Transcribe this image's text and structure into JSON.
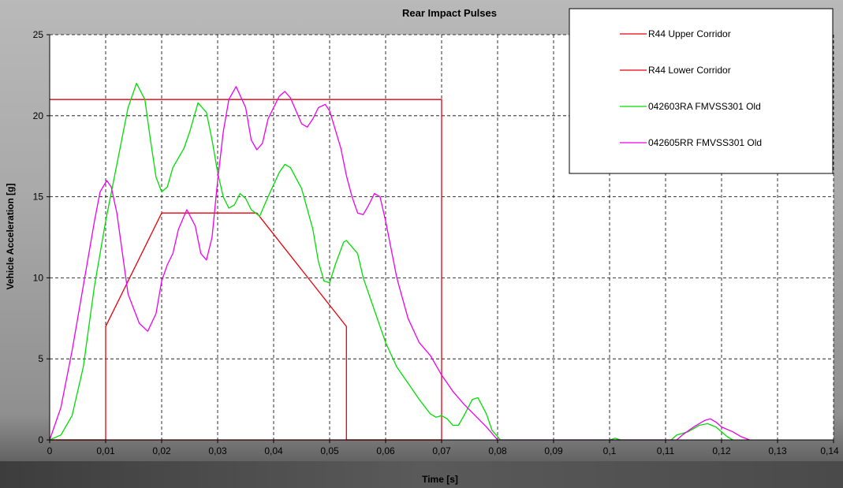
{
  "chart_data": {
    "type": "line",
    "title": "Rear Impact Pulses",
    "xlabel": "Time [s]",
    "ylabel": "Vehicle Acceleration [g]",
    "xlim": [
      0,
      0.14
    ],
    "ylim": [
      0,
      25
    ],
    "x_ticks": [
      0,
      0.01,
      0.02,
      0.03,
      0.04,
      0.05,
      0.06,
      0.07,
      0.08,
      0.09,
      0.1,
      0.11,
      0.12,
      0.13,
      0.14
    ],
    "x_tick_labels": [
      "0",
      "0,01",
      "0,02",
      "0,03",
      "0,04",
      "0,05",
      "0,06",
      "0,07",
      "0,08",
      "0,09",
      "0,1",
      "0,11",
      "0,12",
      "0,13",
      "0,14"
    ],
    "y_ticks": [
      0,
      5,
      10,
      15,
      20,
      25
    ],
    "y_tick_labels": [
      "0",
      "5",
      "10",
      "15",
      "20",
      "25"
    ],
    "grid": true,
    "legend_position": "top-right",
    "series": [
      {
        "name": "R44 Upper Corridor",
        "color": "#e8000b",
        "points": [
          [
            0,
            21
          ],
          [
            0.07,
            21
          ],
          [
            0.07,
            0
          ],
          [
            0,
            0
          ]
        ]
      },
      {
        "name": "R44 Lower Corridor",
        "color": "#e8000b",
        "points": [
          [
            0,
            0
          ],
          [
            0.01,
            0
          ],
          [
            0.01,
            7
          ],
          [
            0.02,
            14
          ],
          [
            0.037,
            14
          ],
          [
            0.053,
            7
          ],
          [
            0.053,
            0
          ],
          [
            0.07,
            0
          ]
        ]
      },
      {
        "name": "042603RA FMVSS301 Old",
        "color": "#00dd00",
        "points": [
          [
            0,
            0
          ],
          [
            0.002,
            0.3
          ],
          [
            0.004,
            1.5
          ],
          [
            0.006,
            4.5
          ],
          [
            0.008,
            9.5
          ],
          [
            0.01,
            13.5
          ],
          [
            0.012,
            17
          ],
          [
            0.014,
            20.5
          ],
          [
            0.0155,
            22
          ],
          [
            0.017,
            21
          ],
          [
            0.018,
            18.5
          ],
          [
            0.019,
            16.2
          ],
          [
            0.02,
            15.3
          ],
          [
            0.021,
            15.6
          ],
          [
            0.022,
            16.8
          ],
          [
            0.024,
            18
          ],
          [
            0.025,
            19
          ],
          [
            0.0265,
            20.8
          ],
          [
            0.028,
            20.2
          ],
          [
            0.029,
            18.5
          ],
          [
            0.03,
            16.5
          ],
          [
            0.031,
            15
          ],
          [
            0.032,
            14.3
          ],
          [
            0.033,
            14.5
          ],
          [
            0.034,
            15.2
          ],
          [
            0.035,
            14.9
          ],
          [
            0.036,
            14.2
          ],
          [
            0.0375,
            13.8
          ],
          [
            0.039,
            15
          ],
          [
            0.041,
            16.5
          ],
          [
            0.042,
            17
          ],
          [
            0.043,
            16.8
          ],
          [
            0.045,
            15.5
          ],
          [
            0.047,
            13
          ],
          [
            0.048,
            11
          ],
          [
            0.049,
            9.8
          ],
          [
            0.05,
            9.7
          ],
          [
            0.051,
            10.8
          ],
          [
            0.0525,
            12.2
          ],
          [
            0.053,
            12.3
          ],
          [
            0.055,
            11.5
          ],
          [
            0.056,
            10
          ],
          [
            0.058,
            8
          ],
          [
            0.06,
            6
          ],
          [
            0.062,
            4.5
          ],
          [
            0.064,
            3.5
          ],
          [
            0.066,
            2.5
          ],
          [
            0.068,
            1.6
          ],
          [
            0.069,
            1.4
          ],
          [
            0.07,
            1.5
          ],
          [
            0.071,
            1.3
          ],
          [
            0.072,
            0.9
          ],
          [
            0.073,
            0.9
          ],
          [
            0.074,
            1.5
          ],
          [
            0.0755,
            2.5
          ],
          [
            0.0765,
            2.6
          ],
          [
            0.078,
            1.6
          ],
          [
            0.079,
            0.6
          ],
          [
            0.0805,
            0
          ],
          [
            0.1,
            0
          ],
          [
            0.101,
            0.1
          ],
          [
            0.102,
            0
          ],
          [
            0.111,
            0
          ],
          [
            0.112,
            0.3
          ],
          [
            0.114,
            0.5
          ],
          [
            0.116,
            0.9
          ],
          [
            0.1175,
            1.0
          ],
          [
            0.119,
            0.8
          ],
          [
            0.12,
            0.5
          ],
          [
            0.121,
            0.2
          ],
          [
            0.122,
            0
          ]
        ]
      },
      {
        "name": "042605RR FMVSS301 Old",
        "color": "#ee00ee",
        "points": [
          [
            0,
            0
          ],
          [
            0.002,
            2
          ],
          [
            0.004,
            5.5
          ],
          [
            0.006,
            9.5
          ],
          [
            0.008,
            13.5
          ],
          [
            0.009,
            15.3
          ],
          [
            0.0102,
            16
          ],
          [
            0.011,
            15.6
          ],
          [
            0.012,
            14
          ],
          [
            0.014,
            9
          ],
          [
            0.016,
            7.2
          ],
          [
            0.0175,
            6.7
          ],
          [
            0.019,
            7.8
          ],
          [
            0.02,
            9.8
          ],
          [
            0.021,
            10.8
          ],
          [
            0.022,
            11.5
          ],
          [
            0.023,
            13
          ],
          [
            0.0245,
            14.2
          ],
          [
            0.026,
            13.2
          ],
          [
            0.027,
            11.5
          ],
          [
            0.028,
            11.1
          ],
          [
            0.029,
            12.5
          ],
          [
            0.03,
            16
          ],
          [
            0.031,
            19
          ],
          [
            0.032,
            21
          ],
          [
            0.0333,
            21.8
          ],
          [
            0.035,
            20.5
          ],
          [
            0.036,
            18.5
          ],
          [
            0.037,
            17.9
          ],
          [
            0.038,
            18.3
          ],
          [
            0.039,
            19.8
          ],
          [
            0.041,
            21.2
          ],
          [
            0.042,
            21.5
          ],
          [
            0.043,
            21.1
          ],
          [
            0.044,
            20.3
          ],
          [
            0.045,
            19.5
          ],
          [
            0.046,
            19.3
          ],
          [
            0.047,
            19.8
          ],
          [
            0.048,
            20.5
          ],
          [
            0.0492,
            20.7
          ],
          [
            0.05,
            20.3
          ],
          [
            0.052,
            18
          ],
          [
            0.053,
            16.3
          ],
          [
            0.054,
            15
          ],
          [
            0.055,
            14
          ],
          [
            0.056,
            13.9
          ],
          [
            0.057,
            14.5
          ],
          [
            0.058,
            15.2
          ],
          [
            0.059,
            15
          ],
          [
            0.06,
            13.5
          ],
          [
            0.062,
            10
          ],
          [
            0.064,
            7.5
          ],
          [
            0.066,
            6
          ],
          [
            0.068,
            5.2
          ],
          [
            0.07,
            4
          ],
          [
            0.072,
            3
          ],
          [
            0.074,
            2.2
          ],
          [
            0.076,
            1.5
          ],
          [
            0.078,
            0.8
          ],
          [
            0.08,
            0
          ],
          [
            0.112,
            0
          ],
          [
            0.113,
            0.3
          ],
          [
            0.115,
            0.8
          ],
          [
            0.117,
            1.2
          ],
          [
            0.118,
            1.3
          ],
          [
            0.119,
            1.1
          ],
          [
            0.12,
            0.8
          ],
          [
            0.122,
            0.5
          ],
          [
            0.1235,
            0.2
          ],
          [
            0.125,
            0
          ]
        ]
      }
    ]
  }
}
